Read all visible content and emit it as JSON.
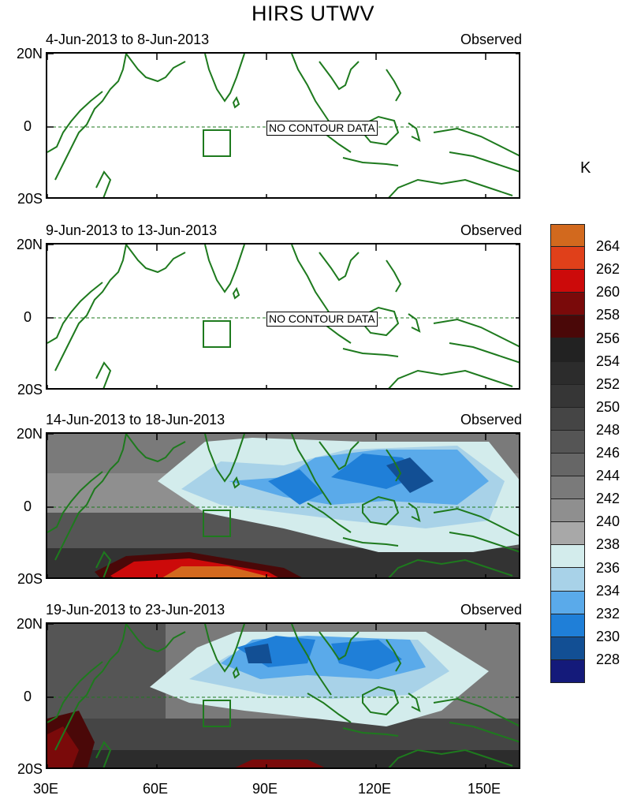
{
  "title": "HIRS UTWV",
  "unit": "K",
  "no_contour_text": "NO CONTOUR DATA",
  "panels": [
    {
      "date_range": "4-Jun-2013 to 8-Jun-2013",
      "source": "Observed",
      "has_data": false
    },
    {
      "date_range": "9-Jun-2013 to 13-Jun-2013",
      "source": "Observed",
      "has_data": false
    },
    {
      "date_range": "14-Jun-2013 to 18-Jun-2013",
      "source": "Observed",
      "has_data": true
    },
    {
      "date_range": "19-Jun-2013 to 23-Jun-2013",
      "source": "Observed",
      "has_data": true
    }
  ],
  "lat_labels": [
    "20N",
    "0",
    "20S"
  ],
  "lon_labels": [
    "30E",
    "60E",
    "90E",
    "120E",
    "150E"
  ],
  "colorbar": {
    "labels": [
      "264",
      "262",
      "260",
      "258",
      "256",
      "254",
      "252",
      "250",
      "248",
      "246",
      "244",
      "242",
      "240",
      "238",
      "236",
      "234",
      "232",
      "230",
      "228"
    ],
    "colors": [
      "#d2691e",
      "#e0401a",
      "#cc0a0a",
      "#7a0a0a",
      "#4a0808",
      "#222222",
      "#2c2c2c",
      "#363636",
      "#454545",
      "#555555",
      "#666666",
      "#7a7a7a",
      "#8f8f8f",
      "#a8a8a8",
      "#d3ecec",
      "#a8d2e8",
      "#5aaaea",
      "#1f7fd8",
      "#124f94",
      "#141a7a"
    ]
  },
  "chart_data": {
    "type": "heatmap",
    "title": "HIRS UTWV",
    "variable_unit": "K",
    "lon_range": [
      30,
      160
    ],
    "lat_range": [
      -20,
      20
    ],
    "lon_ticks": [
      30,
      60,
      90,
      120,
      150
    ],
    "lat_ticks": [
      20,
      0,
      -20
    ],
    "levels": [
      228,
      230,
      232,
      234,
      236,
      238,
      240,
      242,
      244,
      246,
      248,
      250,
      252,
      254,
      256,
      258,
      260,
      262,
      264
    ]
  }
}
